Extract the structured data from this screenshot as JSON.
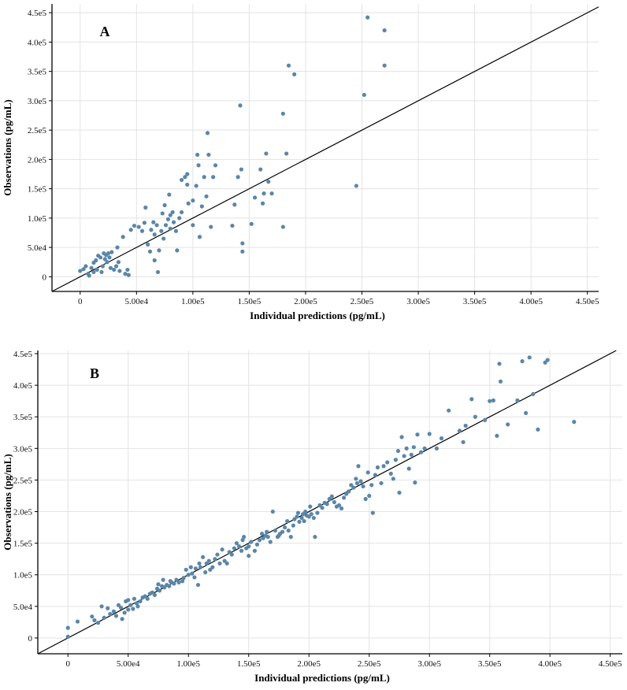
{
  "chart_data": [
    {
      "type": "scatter",
      "panel": "A",
      "xlabel": "Individual predictions (pg/mL)",
      "ylabel": "Observations (pg/mL)",
      "xlim": [
        -25000,
        460000
      ],
      "ylim": [
        -25000,
        465000
      ],
      "x_ticks": [
        0,
        50000,
        100000,
        150000,
        200000,
        250000,
        300000,
        350000,
        400000,
        450000
      ],
      "x_tick_labels": [
        "0",
        "5.00e4",
        "1.00e5",
        "1.50e5",
        "2.00e5",
        "2.50e5",
        "3.00e5",
        "3.50e5",
        "4.00e5",
        "4.50e5"
      ],
      "y_ticks": [
        0,
        50000,
        100000,
        150000,
        200000,
        250000,
        300000,
        350000,
        400000,
        450000
      ],
      "y_tick_labels": [
        "0",
        "5.0e4",
        "1.0e5",
        "1.5e5",
        "2.0e5",
        "2.5e5",
        "3.0e5",
        "3.5e5",
        "4.0e5",
        "4.5e5"
      ],
      "grid": true,
      "identity_line": true,
      "point_color": "#5b86a8",
      "points": [
        [
          0,
          10000
        ],
        [
          3000,
          13000
        ],
        [
          5000,
          18000
        ],
        [
          7000,
          5000
        ],
        [
          8000,
          2000
        ],
        [
          10000,
          15000
        ],
        [
          12000,
          8000
        ],
        [
          12000,
          24000
        ],
        [
          14000,
          28000
        ],
        [
          15000,
          12000
        ],
        [
          16000,
          36000
        ],
        [
          18000,
          33000
        ],
        [
          19000,
          8000
        ],
        [
          20000,
          18000
        ],
        [
          21000,
          40000
        ],
        [
          22000,
          30000
        ],
        [
          23000,
          37000
        ],
        [
          24000,
          25000
        ],
        [
          25000,
          40000
        ],
        [
          26000,
          33000
        ],
        [
          27000,
          15000
        ],
        [
          28000,
          42000
        ],
        [
          30000,
          12000
        ],
        [
          32000,
          18000
        ],
        [
          33000,
          50000
        ],
        [
          34000,
          25000
        ],
        [
          35000,
          10000
        ],
        [
          38000,
          68000
        ],
        [
          40000,
          5000
        ],
        [
          42000,
          12000
        ],
        [
          43000,
          3000
        ],
        [
          45000,
          80000
        ],
        [
          48000,
          87000
        ],
        [
          52000,
          85000
        ],
        [
          55000,
          78000
        ],
        [
          57000,
          92000
        ],
        [
          58000,
          118000
        ],
        [
          60000,
          55000
        ],
        [
          62000,
          43000
        ],
        [
          63000,
          80000
        ],
        [
          65000,
          93000
        ],
        [
          66000,
          28000
        ],
        [
          66000,
          72000
        ],
        [
          68000,
          88000
        ],
        [
          69000,
          8000
        ],
        [
          70000,
          45000
        ],
        [
          72000,
          78000
        ],
        [
          73000,
          108000
        ],
        [
          74000,
          65000
        ],
        [
          75000,
          122000
        ],
        [
          76000,
          88000
        ],
        [
          78000,
          98000
        ],
        [
          79000,
          140000
        ],
        [
          80000,
          105000
        ],
        [
          80000,
          82000
        ],
        [
          82000,
          110000
        ],
        [
          83000,
          93000
        ],
        [
          85000,
          78000
        ],
        [
          86000,
          45000
        ],
        [
          88000,
          100000
        ],
        [
          90000,
          110000
        ],
        [
          90000,
          165000
        ],
        [
          93000,
          170000
        ],
        [
          95000,
          175000
        ],
        [
          95000,
          157000
        ],
        [
          96000,
          125000
        ],
        [
          100000,
          130000
        ],
        [
          100000,
          88000
        ],
        [
          103000,
          155000
        ],
        [
          104000,
          208000
        ],
        [
          105000,
          190000
        ],
        [
          106000,
          68000
        ],
        [
          108000,
          120000
        ],
        [
          110000,
          170000
        ],
        [
          112000,
          137000
        ],
        [
          113000,
          245000
        ],
        [
          114000,
          208000
        ],
        [
          116000,
          85000
        ],
        [
          118000,
          170000
        ],
        [
          120000,
          190000
        ],
        [
          135000,
          87000
        ],
        [
          137000,
          123000
        ],
        [
          140000,
          170000
        ],
        [
          142000,
          292000
        ],
        [
          143000,
          183000
        ],
        [
          144000,
          57000
        ],
        [
          144000,
          43000
        ],
        [
          152000,
          90000
        ],
        [
          155000,
          135000
        ],
        [
          160000,
          183000
        ],
        [
          162000,
          125000
        ],
        [
          163000,
          142000
        ],
        [
          165000,
          210000
        ],
        [
          167000,
          162000
        ],
        [
          170000,
          142000
        ],
        [
          180000,
          278000
        ],
        [
          180000,
          85000
        ],
        [
          183000,
          210000
        ],
        [
          185000,
          360000
        ],
        [
          190000,
          345000
        ],
        [
          245000,
          155000
        ],
        [
          252000,
          310000
        ],
        [
          255000,
          442000
        ],
        [
          270000,
          420000
        ],
        [
          270000,
          360000
        ]
      ]
    },
    {
      "type": "scatter",
      "panel": "B",
      "xlabel": "Individual predictions (pg/mL)",
      "ylabel": "Observations (pg/mL)",
      "xlim": [
        -25000,
        460000
      ],
      "ylim": [
        -25000,
        455000
      ],
      "x_ticks": [
        0,
        50000,
        100000,
        150000,
        200000,
        250000,
        300000,
        350000,
        400000,
        450000
      ],
      "x_tick_labels": [
        "0",
        "5.00e4",
        "1.00e5",
        "1.50e5",
        "2.00e5",
        "2.50e5",
        "3.00e5",
        "3.50e5",
        "4.00e5",
        "4.50e5"
      ],
      "y_ticks": [
        0,
        50000,
        100000,
        150000,
        200000,
        250000,
        300000,
        350000,
        400000,
        450000
      ],
      "y_tick_labels": [
        "0",
        "5.0e4",
        "1.0e5",
        "1.5e5",
        "2.0e5",
        "2.5e5",
        "3.0e5",
        "3.5e5",
        "4.0e5",
        "4.5e5"
      ],
      "grid": true,
      "identity_line": true,
      "point_color": "#5b86a8",
      "points": [
        [
          0,
          2000
        ],
        [
          0,
          16000
        ],
        [
          8000,
          26000
        ],
        [
          20000,
          34000
        ],
        [
          22000,
          28000
        ],
        [
          25000,
          24000
        ],
        [
          28000,
          50000
        ],
        [
          30000,
          32000
        ],
        [
          33000,
          47000
        ],
        [
          35000,
          38000
        ],
        [
          38000,
          42000
        ],
        [
          40000,
          35000
        ],
        [
          42000,
          52000
        ],
        [
          44000,
          48000
        ],
        [
          45000,
          30000
        ],
        [
          47000,
          40000
        ],
        [
          48000,
          58000
        ],
        [
          50000,
          45000
        ],
        [
          50000,
          60000
        ],
        [
          52000,
          52000
        ],
        [
          54000,
          46000
        ],
        [
          55000,
          62000
        ],
        [
          57000,
          55000
        ],
        [
          58000,
          50000
        ],
        [
          60000,
          58000
        ],
        [
          62000,
          64000
        ],
        [
          64000,
          66000
        ],
        [
          66000,
          62000
        ],
        [
          68000,
          70000
        ],
        [
          70000,
          72000
        ],
        [
          72000,
          68000
        ],
        [
          74000,
          78000
        ],
        [
          75000,
          85000
        ],
        [
          76000,
          75000
        ],
        [
          78000,
          82000
        ],
        [
          79000,
          92000
        ],
        [
          80000,
          80000
        ],
        [
          82000,
          84000
        ],
        [
          84000,
          82000
        ],
        [
          85000,
          90000
        ],
        [
          86000,
          88000
        ],
        [
          88000,
          86000
        ],
        [
          90000,
          92000
        ],
        [
          92000,
          88000
        ],
        [
          95000,
          90000
        ],
        [
          96000,
          95000
        ],
        [
          98000,
          108000
        ],
        [
          100000,
          100000
        ],
        [
          102000,
          112000
        ],
        [
          103000,
          102000
        ],
        [
          105000,
          96000
        ],
        [
          106000,
          110000
        ],
        [
          108000,
          84000
        ],
        [
          109000,
          118000
        ],
        [
          110000,
          112000
        ],
        [
          112000,
          128000
        ],
        [
          114000,
          104000
        ],
        [
          115000,
          118000
        ],
        [
          117000,
          122000
        ],
        [
          118000,
          108000
        ],
        [
          120000,
          112000
        ],
        [
          122000,
          125000
        ],
        [
          124000,
          132000
        ],
        [
          126000,
          118000
        ],
        [
          128000,
          140000
        ],
        [
          130000,
          122000
        ],
        [
          132000,
          118000
        ],
        [
          134000,
          136000
        ],
        [
          136000,
          132000
        ],
        [
          138000,
          142000
        ],
        [
          140000,
          150000
        ],
        [
          142000,
          145000
        ],
        [
          144000,
          138000
        ],
        [
          145000,
          155000
        ],
        [
          146000,
          160000
        ],
        [
          148000,
          142000
        ],
        [
          150000,
          130000
        ],
        [
          150000,
          145000
        ],
        [
          152000,
          152000
        ],
        [
          155000,
          138000
        ],
        [
          157000,
          148000
        ],
        [
          159000,
          155000
        ],
        [
          161000,
          165000
        ],
        [
          162000,
          158000
        ],
        [
          164000,
          162000
        ],
        [
          165000,
          168000
        ],
        [
          166000,
          160000
        ],
        [
          168000,
          152000
        ],
        [
          170000,
          200000
        ],
        [
          172000,
          170000
        ],
        [
          174000,
          160000
        ],
        [
          175000,
          162000
        ],
        [
          176000,
          165000
        ],
        [
          178000,
          168000
        ],
        [
          180000,
          175000
        ],
        [
          182000,
          185000
        ],
        [
          183000,
          170000
        ],
        [
          185000,
          160000
        ],
        [
          187000,
          178000
        ],
        [
          188000,
          188000
        ],
        [
          190000,
          192000
        ],
        [
          191000,
          198000
        ],
        [
          192000,
          184000
        ],
        [
          194000,
          190000
        ],
        [
          195000,
          196000
        ],
        [
          196000,
          185000
        ],
        [
          197000,
          200000
        ],
        [
          198000,
          194000
        ],
        [
          200000,
          192000
        ],
        [
          201000,
          208000
        ],
        [
          202000,
          196000
        ],
        [
          204000,
          190000
        ],
        [
          205000,
          160000
        ],
        [
          207000,
          198000
        ],
        [
          209000,
          210000
        ],
        [
          211000,
          206000
        ],
        [
          213000,
          214000
        ],
        [
          215000,
          212000
        ],
        [
          217000,
          220000
        ],
        [
          219000,
          224000
        ],
        [
          221000,
          215000
        ],
        [
          223000,
          208000
        ],
        [
          225000,
          210000
        ],
        [
          227000,
          205000
        ],
        [
          229000,
          222000
        ],
        [
          231000,
          228000
        ],
        [
          233000,
          232000
        ],
        [
          235000,
          242000
        ],
        [
          237000,
          238000
        ],
        [
          239000,
          252000
        ],
        [
          240000,
          245000
        ],
        [
          241000,
          272000
        ],
        [
          243000,
          248000
        ],
        [
          245000,
          240000
        ],
        [
          247000,
          220000
        ],
        [
          249000,
          262000
        ],
        [
          250000,
          225000
        ],
        [
          252000,
          242000
        ],
        [
          253000,
          198000
        ],
        [
          255000,
          258000
        ],
        [
          257000,
          270000
        ],
        [
          260000,
          245000
        ],
        [
          262000,
          272000
        ],
        [
          265000,
          278000
        ],
        [
          268000,
          260000
        ],
        [
          270000,
          252000
        ],
        [
          272000,
          282000
        ],
        [
          274000,
          296000
        ],
        [
          275000,
          230000
        ],
        [
          277000,
          318000
        ],
        [
          279000,
          288000
        ],
        [
          281000,
          300000
        ],
        [
          283000,
          268000
        ],
        [
          285000,
          290000
        ],
        [
          287000,
          302000
        ],
        [
          288000,
          246000
        ],
        [
          290000,
          322000
        ],
        [
          293000,
          294000
        ],
        [
          296000,
          300000
        ],
        [
          300000,
          323000
        ],
        [
          306000,
          300000
        ],
        [
          310000,
          316000
        ],
        [
          316000,
          360000
        ],
        [
          325000,
          328000
        ],
        [
          328000,
          310000
        ],
        [
          330000,
          336000
        ],
        [
          335000,
          378000
        ],
        [
          338000,
          350000
        ],
        [
          346000,
          345000
        ],
        [
          350000,
          375000
        ],
        [
          353000,
          376000
        ],
        [
          356000,
          320000
        ],
        [
          358000,
          434000
        ],
        [
          359000,
          406000
        ],
        [
          365000,
          338000
        ],
        [
          373000,
          376000
        ],
        [
          377000,
          438000
        ],
        [
          380000,
          356000
        ],
        [
          383000,
          444000
        ],
        [
          386000,
          386000
        ],
        [
          390000,
          330000
        ],
        [
          396000,
          436000
        ],
        [
          398000,
          440000
        ],
        [
          420000,
          342000
        ]
      ]
    }
  ]
}
